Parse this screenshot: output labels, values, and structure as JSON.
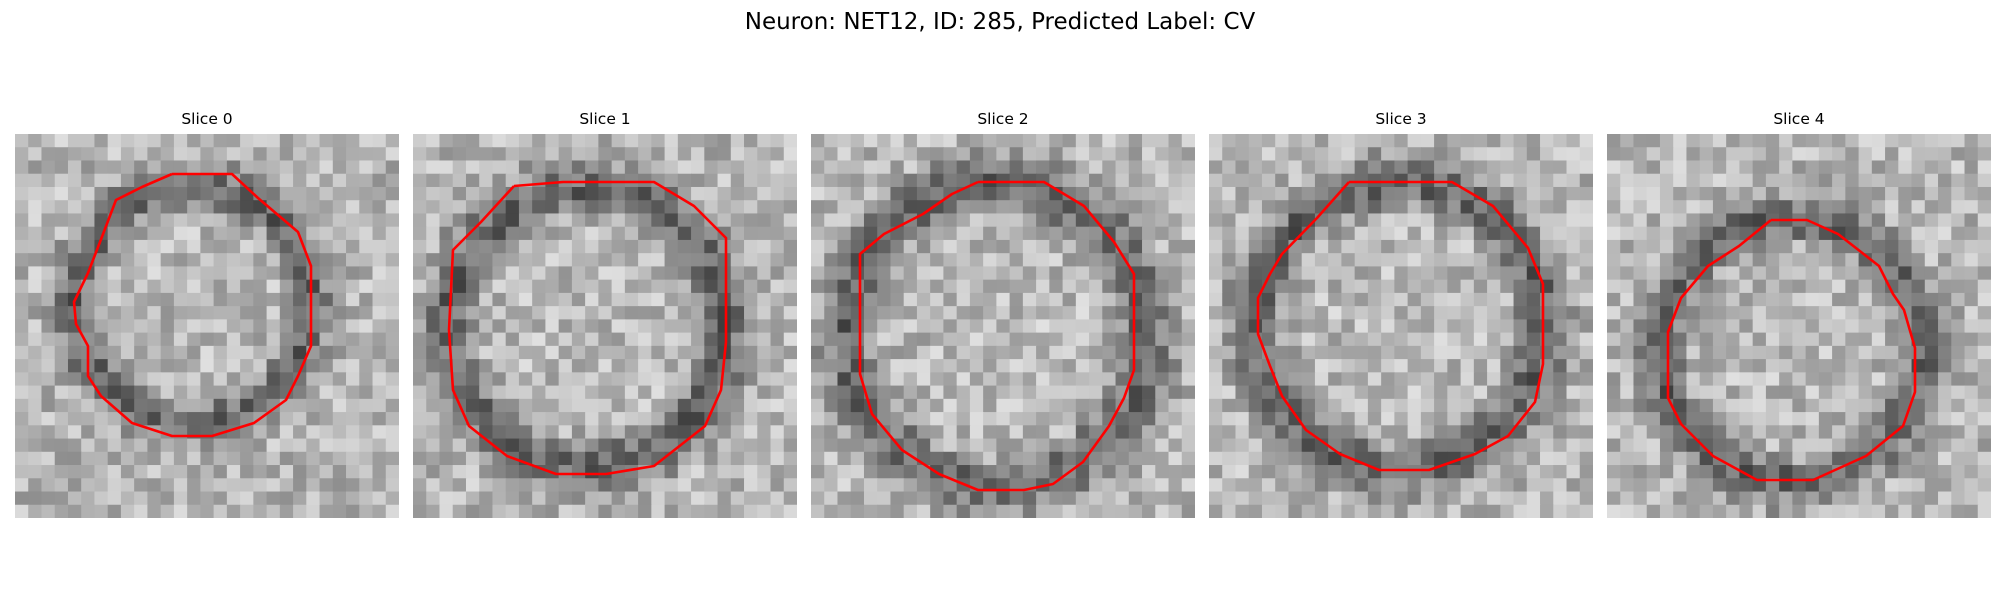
{
  "figure": {
    "title": "Neuron: NET12, ID: 285, Predicted Label: CV"
  },
  "panels": [
    {
      "title": "Slice 0"
    },
    {
      "title": "Slice 1"
    },
    {
      "title": "Slice 2"
    },
    {
      "title": "Slice 3"
    },
    {
      "title": "Slice 4"
    }
  ],
  "colors": {
    "contour": "#ff0000",
    "colormap": "grayscale"
  }
}
